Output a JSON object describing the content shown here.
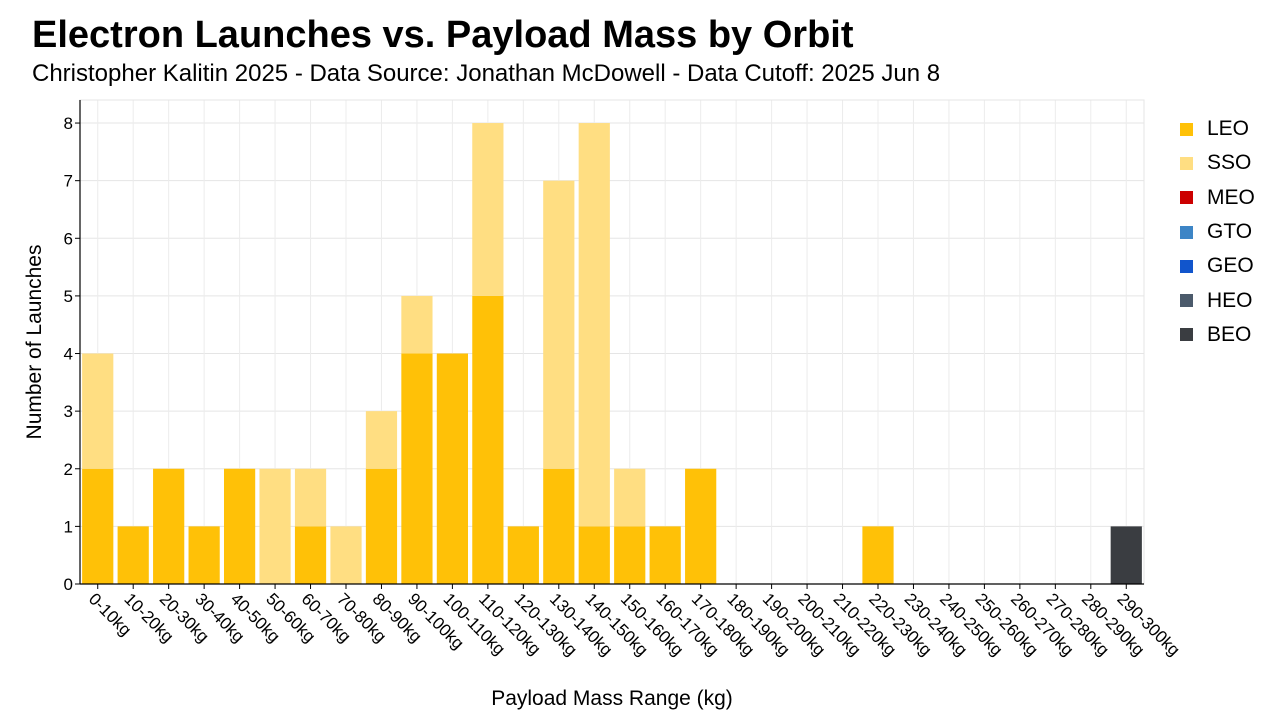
{
  "chart_data": {
    "type": "bar",
    "stacked": true,
    "title": "Electron Launches vs. Payload Mass by Orbit",
    "subtitle": "Christopher Kalitin 2025 - Data Source: Jonathan McDowell - Data Cutoff: 2025 Jun 8",
    "xlabel": "Payload Mass Range (kg)",
    "ylabel": "Number of Launches",
    "ylim": [
      0,
      8.4
    ],
    "yticks": [
      0,
      1,
      2,
      3,
      4,
      5,
      6,
      7,
      8
    ],
    "grid": true,
    "legend_position": "right",
    "categories": [
      "0-10kg",
      "10-20kg",
      "20-30kg",
      "30-40kg",
      "40-50kg",
      "50-60kg",
      "60-70kg",
      "70-80kg",
      "80-90kg",
      "90-100kg",
      "100-110kg",
      "110-120kg",
      "120-130kg",
      "130-140kg",
      "140-150kg",
      "150-160kg",
      "160-170kg",
      "170-180kg",
      "180-190kg",
      "190-200kg",
      "200-210kg",
      "210-220kg",
      "220-230kg",
      "230-240kg",
      "240-250kg",
      "250-260kg",
      "260-270kg",
      "270-280kg",
      "280-290kg",
      "290-300kg"
    ],
    "series": [
      {
        "name": "LEO",
        "color": "#FFC107",
        "values": [
          2,
          1,
          2,
          1,
          2,
          0,
          1,
          0,
          2,
          4,
          4,
          5,
          1,
          2,
          1,
          1,
          1,
          2,
          0,
          0,
          0,
          0,
          1,
          0,
          0,
          0,
          0,
          0,
          0,
          0
        ]
      },
      {
        "name": "SSO",
        "color": "#FFDE82",
        "values": [
          2,
          0,
          0,
          0,
          0,
          2,
          1,
          1,
          1,
          1,
          0,
          3,
          0,
          5,
          7,
          1,
          0,
          0,
          0,
          0,
          0,
          0,
          0,
          0,
          0,
          0,
          0,
          0,
          0,
          0
        ]
      },
      {
        "name": "MEO",
        "color": "#CC0000",
        "values": [
          0,
          0,
          0,
          0,
          0,
          0,
          0,
          0,
          0,
          0,
          0,
          0,
          0,
          0,
          0,
          0,
          0,
          0,
          0,
          0,
          0,
          0,
          0,
          0,
          0,
          0,
          0,
          0,
          0,
          0
        ]
      },
      {
        "name": "GTO",
        "color": "#3D85C6",
        "values": [
          0,
          0,
          0,
          0,
          0,
          0,
          0,
          0,
          0,
          0,
          0,
          0,
          0,
          0,
          0,
          0,
          0,
          0,
          0,
          0,
          0,
          0,
          0,
          0,
          0,
          0,
          0,
          0,
          0,
          0
        ]
      },
      {
        "name": "GEO",
        "color": "#1155CC",
        "values": [
          0,
          0,
          0,
          0,
          0,
          0,
          0,
          0,
          0,
          0,
          0,
          0,
          0,
          0,
          0,
          0,
          0,
          0,
          0,
          0,
          0,
          0,
          0,
          0,
          0,
          0,
          0,
          0,
          0,
          0
        ]
      },
      {
        "name": "HEO",
        "color": "#4B5A6B",
        "values": [
          0,
          0,
          0,
          0,
          0,
          0,
          0,
          0,
          0,
          0,
          0,
          0,
          0,
          0,
          0,
          0,
          0,
          0,
          0,
          0,
          0,
          0,
          0,
          0,
          0,
          0,
          0,
          0,
          0,
          0
        ]
      },
      {
        "name": "BEO",
        "color": "#3A3D41",
        "values": [
          0,
          0,
          0,
          0,
          0,
          0,
          0,
          0,
          0,
          0,
          0,
          0,
          0,
          0,
          0,
          0,
          0,
          0,
          0,
          0,
          0,
          0,
          0,
          0,
          0,
          0,
          0,
          0,
          0,
          1
        ]
      }
    ]
  }
}
